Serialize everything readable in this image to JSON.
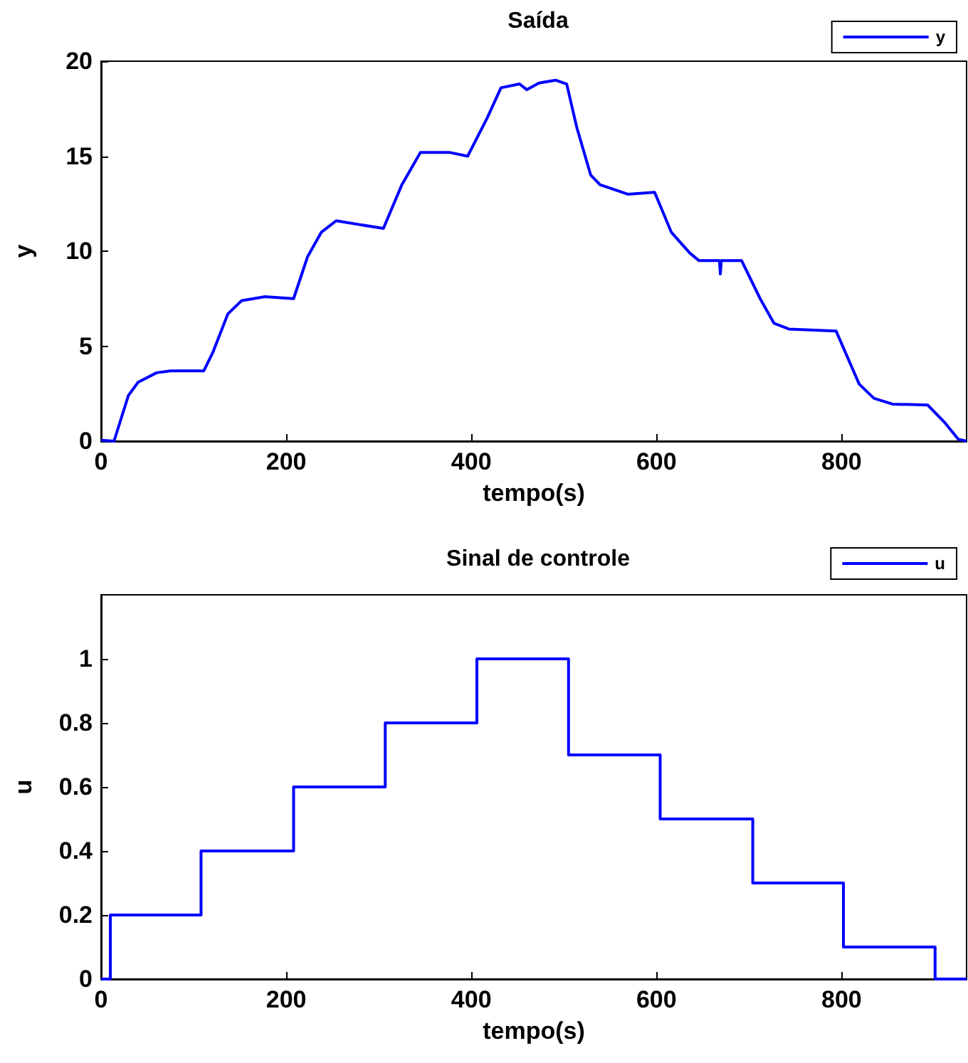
{
  "chart_data": [
    {
      "type": "line",
      "title": "Saída",
      "xlabel": "tempo(s)",
      "ylabel": "y",
      "xlim": [
        0,
        935
      ],
      "xticks": [
        0,
        200,
        400,
        600,
        800
      ],
      "ylim": [
        0,
        20
      ],
      "yticks": [
        0,
        5,
        10,
        15,
        20
      ],
      "grid": false,
      "legend": "top right",
      "marker": "none",
      "line_style": "solid",
      "series": [
        {
          "name": "y",
          "color": "#0000ff",
          "x": [
            0,
            14,
            29.5,
            40,
            60,
            75,
            111,
            121,
            137,
            152,
            177,
            208,
            223,
            238,
            254,
            279,
            305,
            325,
            345,
            376,
            396,
            417,
            432,
            452,
            460,
            473,
            491,
            503,
            514,
            529,
            539,
            569,
            598,
            616,
            636,
            646,
            668,
            669,
            670,
            692,
            712,
            727,
            743,
            794,
            819,
            835,
            855,
            893,
            911,
            926,
            935
          ],
          "values": [
            0.05,
            0,
            2.4,
            3.1,
            3.6,
            3.7,
            3.7,
            4.7,
            6.7,
            7.4,
            7.6,
            7.5,
            9.7,
            11.0,
            11.6,
            11.4,
            11.2,
            13.5,
            15.2,
            15.2,
            15.0,
            17.0,
            18.6,
            18.8,
            18.5,
            18.85,
            19.0,
            18.8,
            16.5,
            14.0,
            13.5,
            13.0,
            13.1,
            11.0,
            9.9,
            9.5,
            9.5,
            8.8,
            9.5,
            9.5,
            7.5,
            6.2,
            5.9,
            5.8,
            3.0,
            2.25,
            1.95,
            1.9,
            1.0,
            0.1,
            0
          ]
        }
      ]
    },
    {
      "type": "step",
      "title": "Sinal de controle",
      "xlabel": "tempo(s)",
      "ylabel": "u",
      "xlim": [
        0,
        935
      ],
      "xticks": [
        0,
        200,
        400,
        600,
        800
      ],
      "ylim": [
        0,
        1.2
      ],
      "yticks": [
        0,
        0.2,
        0.4,
        0.6,
        0.8,
        1
      ],
      "grid": false,
      "legend": "top right",
      "marker": "none",
      "line_style": "solid",
      "series": [
        {
          "name": "u",
          "color": "#0000ff",
          "x": [
            0,
            10,
            108,
            208,
            307,
            406,
            505,
            604,
            704,
            802,
            901,
            935
          ],
          "values": [
            0,
            0.2,
            0.4,
            0.6,
            0.8,
            1,
            0.7,
            0.5,
            0.3,
            0.1,
            0,
            0
          ]
        }
      ]
    }
  ]
}
